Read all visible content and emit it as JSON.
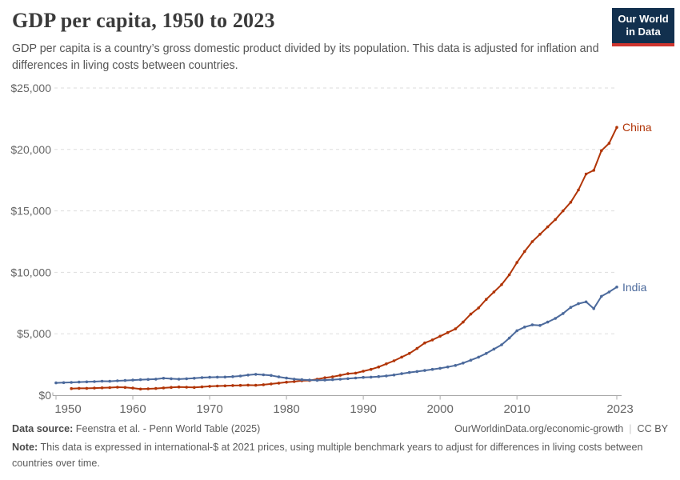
{
  "header": {
    "title": "GDP per capita, 1950 to 2023",
    "subtitle": "GDP per capita is a country’s gross domestic product divided by its population. This data is adjusted for inflation and differences in living costs between countries."
  },
  "logo": {
    "line1": "Our World",
    "line2": "in Data",
    "bg_color": "#12304e",
    "bar_color": "#cf352e"
  },
  "footer": {
    "datasource_label": "Data source:",
    "datasource": "Feenstra et al. - Penn World Table (2025)",
    "url": "OurWorldinData.org/economic-growth",
    "divider": "|",
    "license": "CC BY",
    "note_label": "Note:",
    "note": "This data is expressed in international-$ at 2021 prices, using multiple benchmark years to adjust for differences in living costs between countries over time."
  },
  "chart_data": {
    "type": "line",
    "title": "GDP per capita, 1950 to 2023",
    "xlabel": "",
    "ylabel": "",
    "x_range": [
      1950,
      2023
    ],
    "ylim": [
      0,
      25000
    ],
    "grid": "horizontal-dashed",
    "legend_position": "end-of-line-labels",
    "x_ticks": [
      {
        "year": 1950,
        "label": "1950"
      },
      {
        "year": 1960,
        "label": "1960"
      },
      {
        "year": 1970,
        "label": "1970"
      },
      {
        "year": 1980,
        "label": "1980"
      },
      {
        "year": 1990,
        "label": "1990"
      },
      {
        "year": 2000,
        "label": "2000"
      },
      {
        "year": 2010,
        "label": "2010"
      },
      {
        "year": 2023,
        "label": "2023"
      }
    ],
    "y_ticks": [
      {
        "value": 0,
        "label": "$0"
      },
      {
        "value": 5000,
        "label": "$5,000"
      },
      {
        "value": 10000,
        "label": "$10,000"
      },
      {
        "value": 15000,
        "label": "$15,000"
      },
      {
        "value": 20000,
        "label": "$20,000"
      },
      {
        "value": 25000,
        "label": "$25,000"
      }
    ],
    "series": [
      {
        "name": "China",
        "color": "#b13507",
        "start_year": 1952,
        "end_year": 2023,
        "values": [
          540,
          560,
          560,
          580,
          600,
          620,
          650,
          630,
          580,
          500,
          520,
          550,
          590,
          640,
          670,
          650,
          630,
          680,
          720,
          750,
          760,
          790,
          800,
          820,
          810,
          850,
          920,
          980,
          1060,
          1110,
          1180,
          1200,
          1300,
          1420,
          1500,
          1620,
          1750,
          1800,
          1950,
          2100,
          2300,
          2550,
          2800,
          3100,
          3400,
          3800,
          4250,
          4500,
          4800,
          5100,
          5400,
          5950,
          6600,
          7100,
          7800,
          8400,
          9000,
          9800,
          10800,
          11700,
          12500,
          13100,
          13700,
          14300,
          15000,
          15700,
          16700,
          18000,
          18300,
          19900,
          20500,
          21800
        ]
      },
      {
        "name": "India",
        "color": "#4c6a9c",
        "start_year": 1950,
        "end_year": 2023,
        "values": [
          1000,
          1020,
          1040,
          1070,
          1090,
          1110,
          1140,
          1130,
          1170,
          1200,
          1230,
          1260,
          1280,
          1310,
          1380,
          1340,
          1310,
          1340,
          1380,
          1430,
          1460,
          1470,
          1480,
          1510,
          1560,
          1640,
          1700,
          1660,
          1610,
          1490,
          1390,
          1310,
          1260,
          1230,
          1210,
          1230,
          1260,
          1300,
          1350,
          1400,
          1450,
          1470,
          1520,
          1570,
          1650,
          1750,
          1850,
          1930,
          2010,
          2100,
          2190,
          2300,
          2420,
          2620,
          2850,
          3100,
          3400,
          3750,
          4100,
          4650,
          5250,
          5550,
          5720,
          5680,
          5950,
          6250,
          6650,
          7150,
          7450,
          7600,
          7050,
          8050,
          8400,
          8800
        ]
      }
    ]
  }
}
